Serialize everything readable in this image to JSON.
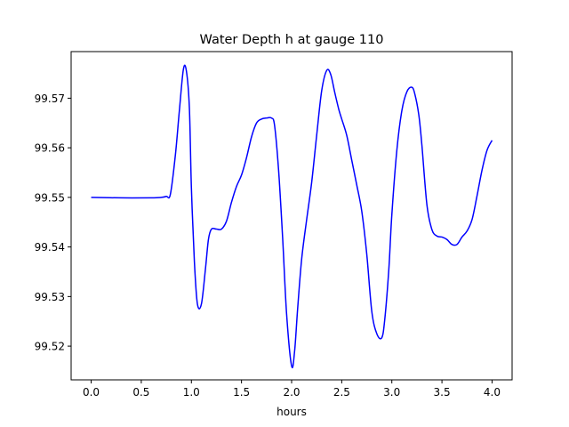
{
  "chart_data": {
    "type": "line",
    "title": "Water Depth h at gauge 110",
    "xlabel": "hours",
    "ylabel": "",
    "xlim": [
      -0.2,
      4.2
    ],
    "ylim": [
      99.5132,
      99.5794
    ],
    "xticks": [
      0.0,
      0.5,
      1.0,
      1.5,
      2.0,
      2.5,
      3.0,
      3.5,
      4.0
    ],
    "xtick_labels": [
      "0.0",
      "0.5",
      "1.0",
      "1.5",
      "2.0",
      "2.5",
      "3.0",
      "3.5",
      "4.0"
    ],
    "yticks": [
      99.52,
      99.53,
      99.54,
      99.55,
      99.56,
      99.57
    ],
    "ytick_labels": [
      "99.52",
      "99.53",
      "99.54",
      "99.55",
      "99.56",
      "99.57"
    ],
    "grid": false,
    "series": [
      {
        "color": "#0000ff",
        "x": [
          0.0,
          0.3,
          0.6,
          0.7,
          0.75,
          0.79,
          0.84,
          0.88,
          0.92,
          0.95,
          0.98,
          1.0,
          1.03,
          1.06,
          1.1,
          1.14,
          1.17,
          1.2,
          1.25,
          1.3,
          1.35,
          1.4,
          1.45,
          1.5,
          1.55,
          1.6,
          1.65,
          1.7,
          1.75,
          1.8,
          1.83,
          1.87,
          1.91,
          1.95,
          2.0,
          2.03,
          2.06,
          2.1,
          2.15,
          2.2,
          2.25,
          2.3,
          2.35,
          2.39,
          2.43,
          2.47,
          2.5,
          2.55,
          2.6,
          2.65,
          2.7,
          2.75,
          2.8,
          2.85,
          2.9,
          2.93,
          2.97,
          3.0,
          3.05,
          3.1,
          3.15,
          3.2,
          3.23,
          3.27,
          3.3,
          3.35,
          3.4,
          3.45,
          3.5,
          3.55,
          3.6,
          3.65,
          3.7,
          3.75,
          3.8,
          3.85,
          3.9,
          3.95,
          4.0
        ],
        "y": [
          99.55,
          99.5499,
          99.5499,
          99.55,
          99.5502,
          99.5506,
          99.5585,
          99.5675,
          99.5758,
          99.5755,
          99.568,
          99.552,
          99.537,
          99.5285,
          99.5285,
          99.5355,
          99.5415,
          99.5436,
          99.5436,
          99.5436,
          99.5452,
          99.549,
          99.5522,
          99.5545,
          99.558,
          99.5622,
          99.565,
          99.5658,
          99.566,
          99.566,
          99.5645,
          99.5555,
          99.542,
          99.5265,
          99.516,
          99.519,
          99.5275,
          99.5375,
          99.5455,
          99.553,
          99.5625,
          99.5715,
          99.5756,
          99.5748,
          99.5712,
          99.5678,
          99.5658,
          99.5625,
          99.5575,
          99.5525,
          99.5472,
          99.5385,
          99.527,
          99.5225,
          99.5217,
          99.5255,
          99.5355,
          99.5465,
          99.5595,
          99.5675,
          99.5713,
          99.5722,
          99.5708,
          99.5665,
          99.5605,
          99.5485,
          99.5435,
          99.5422,
          99.542,
          99.5415,
          99.5405,
          99.5405,
          99.542,
          99.5432,
          99.5455,
          99.5503,
          99.5555,
          99.5595,
          99.5615
        ]
      }
    ]
  }
}
